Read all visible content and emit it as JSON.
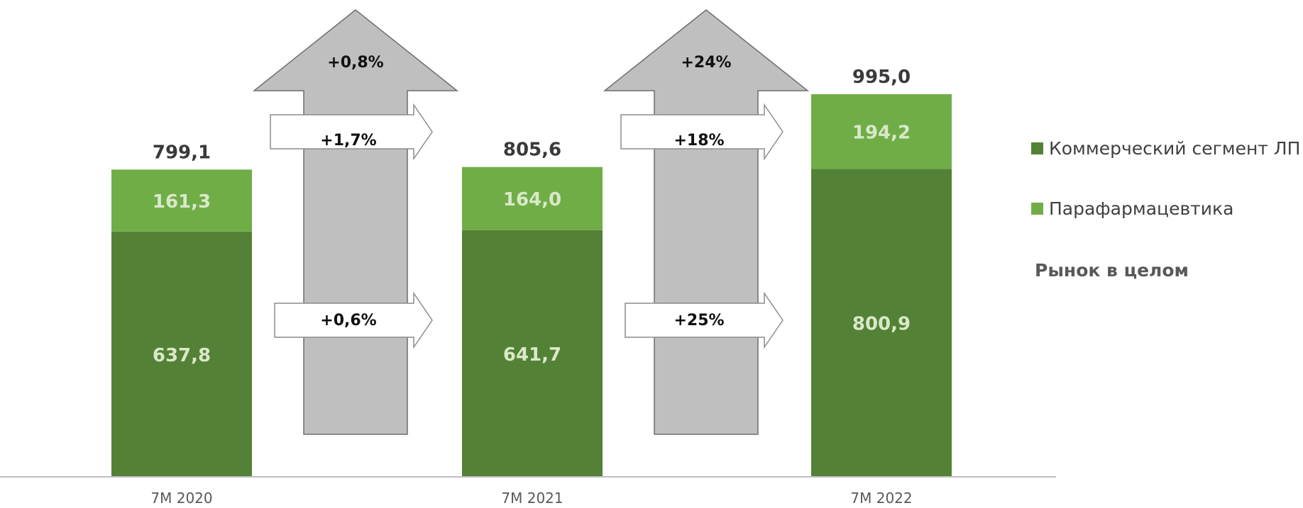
{
  "chart_data": {
    "type": "bar",
    "stacked": true,
    "categories": [
      "7M 2020",
      "7M 2021",
      "7M 2022"
    ],
    "series": [
      {
        "name": "Коммерческий сегмент ЛП",
        "values_label": [
          "637,8",
          "641,7",
          "800,9"
        ],
        "values": [
          637.8,
          641.7,
          800.9
        ],
        "color": "#538135"
      },
      {
        "name": "Парафармацевтика",
        "values_label": [
          "161,3",
          "164,0",
          "194,2"
        ],
        "values": [
          161.3,
          164.0,
          194.2
        ],
        "color": "#70ad47"
      }
    ],
    "totals_label": [
      "799,1",
      "805,6",
      "995,0"
    ],
    "totals": [
      799.1,
      805.6,
      995.0
    ],
    "legend_extra": "Рынок в целом",
    "growth_arrows": [
      {
        "total": "+0,8%",
        "para": "+1,7%",
        "commercial": "+0,6%"
      },
      {
        "total": "+24%",
        "para": "+18%",
        "commercial": "+25%"
      }
    ],
    "ylim": [
      0,
      1050
    ],
    "legend_position": "right"
  },
  "colors": {
    "big_arrow_fill": "#bfbfbf",
    "big_arrow_stroke": "#6f6f6f",
    "axis": "#bfbfbf"
  }
}
